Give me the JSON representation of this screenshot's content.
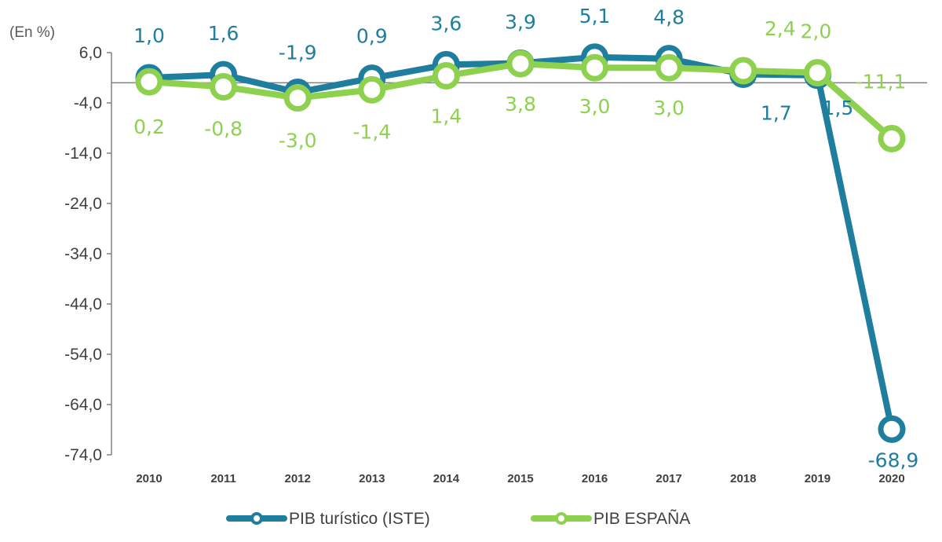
{
  "chart_data": {
    "type": "line",
    "unit_label": "(En %)",
    "categories": [
      "2010",
      "2011",
      "2012",
      "2013",
      "2014",
      "2015",
      "2016",
      "2017",
      "2018",
      "2019",
      "2020"
    ],
    "y_ticks": [
      "6,0",
      "-4,0",
      "-14,0",
      "-24,0",
      "-34,0",
      "-44,0",
      "-54,0",
      "-64,0",
      "-74,0"
    ],
    "ylim": [
      -74,
      6
    ],
    "series": [
      {
        "name": "PIB turístico (ISTE)",
        "color": "#1F7E9E",
        "values": [
          1.0,
          1.6,
          -1.9,
          0.9,
          3.6,
          3.9,
          5.1,
          4.8,
          1.7,
          1.5,
          -68.9
        ],
        "labels": [
          "1,0",
          "1,6",
          "-1,9",
          "0,9",
          "3,6",
          "3,9",
          "5,1",
          "4,8",
          "1,7",
          "1,5",
          "-68,9"
        ]
      },
      {
        "name": "PIB ESPAÑA",
        "color": "#8ED14F",
        "values": [
          0.2,
          -0.8,
          -3.0,
          -1.4,
          1.4,
          3.8,
          3.0,
          3.0,
          2.4,
          2.0,
          -11.1
        ],
        "labels": [
          "0,2",
          "-0,8",
          "-3,0",
          "-1,4",
          "1,4",
          "3,8",
          "3,0",
          "3,0",
          "2,4",
          "2,0",
          "-11,1"
        ]
      }
    ],
    "legend_position": "bottom",
    "grid": false
  }
}
